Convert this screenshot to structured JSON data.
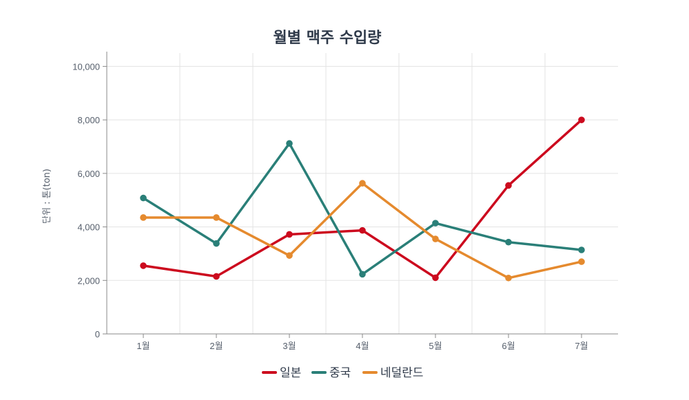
{
  "chart_data": {
    "type": "line",
    "title": "월별 맥주 수입량",
    "xlabel": "",
    "ylabel": "단위 : 톤(ton)",
    "categories": [
      "1월",
      "2월",
      "3월",
      "4월",
      "5월",
      "6월",
      "7월"
    ],
    "ylim": [
      0,
      10500
    ],
    "yticks": [
      0,
      2000,
      4000,
      6000,
      8000,
      10000
    ],
    "ytick_labels": [
      "0",
      "2,000",
      "4,000",
      "6,000",
      "8,000",
      "10,000"
    ],
    "grid": true,
    "legend_position": "bottom",
    "series": [
      {
        "name": "일본",
        "color": "#cc0a1e",
        "values": [
          2550,
          2150,
          3720,
          3870,
          2100,
          5550,
          8000
        ]
      },
      {
        "name": "중국",
        "color": "#2a7f78",
        "values": [
          5080,
          3380,
          7120,
          2230,
          4140,
          3430,
          3140
        ]
      },
      {
        "name": "네덜란드",
        "color": "#e58a2e",
        "values": [
          4350,
          4350,
          2930,
          5630,
          3550,
          2090,
          2700
        ]
      }
    ]
  }
}
